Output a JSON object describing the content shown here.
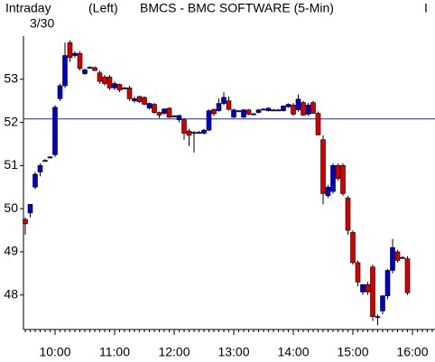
{
  "chart_data": {
    "type": "candlestick",
    "title": "BMCS - BMC SOFTWARE (5-Min)",
    "header_left": "Intraday",
    "header_date": "3/30",
    "header_side": "(Left)",
    "header_right": "I",
    "x": [
      "9:30",
      "9:35",
      "9:40",
      "9:45",
      "9:50",
      "9:55",
      "10:00",
      "10:05",
      "10:10",
      "10:15",
      "10:20",
      "10:25",
      "10:30",
      "10:35",
      "10:40",
      "10:45",
      "10:50",
      "10:55",
      "11:00",
      "11:05",
      "11:10",
      "11:15",
      "11:20",
      "11:25",
      "11:30",
      "11:35",
      "11:40",
      "11:45",
      "11:50",
      "11:55",
      "12:00",
      "12:05",
      "12:10",
      "12:15",
      "12:20",
      "12:25",
      "12:30",
      "12:35",
      "12:40",
      "12:45",
      "12:50",
      "12:55",
      "13:00",
      "13:05",
      "13:10",
      "13:15",
      "13:20",
      "13:25",
      "13:30",
      "13:35",
      "13:40",
      "13:45",
      "13:50",
      "13:55",
      "14:00",
      "14:05",
      "14:10",
      "14:15",
      "14:20",
      "14:25",
      "14:30",
      "14:35",
      "14:40",
      "14:45",
      "14:50",
      "14:55",
      "15:00",
      "15:05",
      "15:10",
      "15:15",
      "15:20",
      "15:25",
      "15:30",
      "15:35",
      "15:40",
      "15:45",
      "15:50",
      "15:55"
    ],
    "open": [
      49.75,
      49.9,
      50.5,
      50.85,
      51.12,
      51.2,
      51.25,
      52.55,
      52.85,
      53.85,
      53.55,
      53.6,
      53.13,
      53.27,
      53.27,
      53.15,
      53.05,
      53.05,
      52.8,
      52.88,
      52.8,
      52.8,
      52.5,
      52.6,
      52.58,
      52.33,
      52.42,
      52.23,
      52.21,
      52.33,
      52.15,
      52.06,
      52.06,
      51.8,
      51.77,
      51.77,
      51.75,
      51.82,
      52.3,
      52.27,
      52.44,
      52.5,
      52.12,
      52.27,
      52.12,
      52.29,
      52.2,
      52.23,
      52.31,
      52.27,
      52.29,
      52.29,
      52.27,
      52.36,
      52.4,
      52.29,
      52.46,
      52.19,
      52.46,
      52.21,
      51.6,
      50.3,
      50.4,
      51.0,
      51.0,
      50.25,
      49.45,
      48.75,
      48.07,
      48.24,
      48.65,
      47.5,
      47.63,
      47.98,
      48.57,
      49.0,
      48.87,
      48.84
    ],
    "high": [
      49.8,
      50.1,
      50.85,
      51.05,
      51.15,
      51.22,
      52.4,
      52.9,
      53.85,
      53.9,
      53.65,
      53.65,
      53.25,
      53.3,
      53.3,
      53.2,
      53.1,
      53.1,
      52.95,
      52.9,
      52.82,
      52.85,
      52.6,
      52.62,
      52.6,
      52.46,
      52.45,
      52.25,
      52.33,
      52.35,
      52.17,
      52.18,
      52.1,
      51.85,
      51.8,
      51.8,
      51.85,
      52.3,
      52.32,
      52.55,
      52.7,
      52.6,
      52.32,
      52.29,
      52.31,
      52.31,
      52.22,
      52.31,
      52.33,
      52.35,
      52.31,
      52.31,
      52.4,
      52.44,
      52.45,
      52.65,
      52.5,
      52.45,
      52.5,
      52.25,
      51.7,
      50.55,
      51.05,
      51.05,
      51.05,
      50.3,
      49.5,
      48.8,
      48.25,
      48.3,
      48.7,
      47.55,
      48.0,
      48.6,
      49.3,
      49.05,
      48.9,
      48.9
    ],
    "low": [
      49.4,
      49.8,
      50.45,
      50.75,
      51.1,
      51.18,
      51.2,
      52.5,
      52.8,
      53.4,
      53.5,
      53.2,
      53.1,
      53.25,
      53.2,
      52.9,
      52.85,
      52.75,
      52.75,
      52.7,
      52.78,
      52.5,
      52.45,
      52.45,
      52.4,
      52.3,
      52.2,
      52.1,
      52.18,
      52.1,
      52.13,
      52.0,
      51.6,
      51.45,
      51.3,
      51.74,
      51.72,
      51.8,
      52.15,
      52.25,
      52.4,
      52.28,
      52.1,
      52.25,
      52.1,
      52.17,
      52.18,
      52.21,
      52.29,
      52.25,
      52.27,
      52.27,
      52.25,
      52.34,
      52.15,
      52.25,
      52.15,
      52.15,
      52.2,
      51.7,
      50.1,
      50.25,
      50.35,
      50.65,
      50.3,
      49.4,
      48.7,
      48.2,
      48.0,
      48.0,
      47.4,
      47.3,
      47.55,
      47.9,
      48.5,
      48.75,
      48.84,
      48.0
    ],
    "close": [
      49.65,
      50.1,
      50.8,
      51.0,
      51.12,
      51.2,
      52.35,
      52.85,
      53.55,
      53.5,
      53.6,
      53.25,
      53.22,
      53.28,
      53.2,
      52.95,
      52.9,
      52.8,
      52.9,
      52.75,
      52.8,
      52.55,
      52.55,
      52.48,
      52.42,
      52.44,
      52.23,
      52.17,
      52.31,
      52.12,
      52.15,
      52.16,
      51.75,
      51.7,
      51.76,
      51.77,
      51.82,
      52.27,
      52.2,
      52.44,
      52.58,
      52.3,
      52.29,
      52.27,
      52.29,
      52.19,
      52.2,
      52.29,
      52.31,
      52.33,
      52.29,
      52.29,
      52.38,
      52.42,
      52.19,
      52.54,
      52.17,
      52.4,
      52.21,
      51.71,
      50.35,
      50.5,
      51.0,
      50.7,
      50.35,
      49.5,
      48.75,
      48.3,
      48.24,
      48.07,
      47.5,
      47.5,
      47.98,
      48.57,
      49.1,
      48.8,
      48.87,
      48.05
    ],
    "up_color": "#0000c8",
    "down_color": "#d40000",
    "reference_line": 52.08,
    "reference_color": "#2020c0",
    "ylim": [
      47.2,
      54.0
    ],
    "yticks": [
      48,
      49,
      50,
      51,
      52,
      53
    ],
    "xticks": [
      "10:00",
      "11:00",
      "12:00",
      "13:00",
      "14:00",
      "15:00",
      "16:00"
    ]
  }
}
